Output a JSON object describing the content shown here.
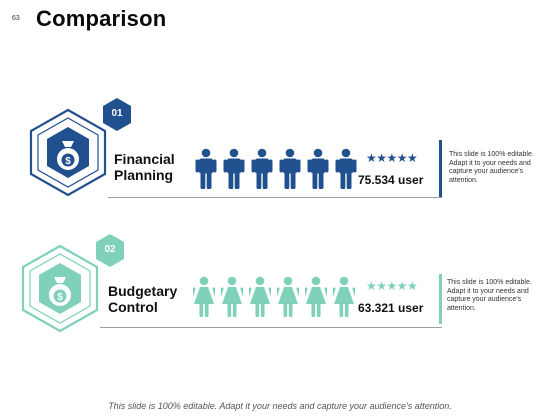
{
  "page_number": "63",
  "title": "Comparison",
  "colors": {
    "primary": "#21508f",
    "secondary": "#7fd1b9"
  },
  "items": [
    {
      "badge": "01",
      "icon": "money-bag-icon",
      "label_line1": "Financial",
      "label_line2": "Planning",
      "people_count": 6,
      "stars": "★★★★★",
      "value": "75.534 user",
      "description": "This slide is 100% editable. Adapt it to your needs and capture your audience's attention."
    },
    {
      "badge": "02",
      "icon": "money-bag-icon",
      "label_line1": "Budgetary",
      "label_line2": "Control",
      "people_count": 6,
      "stars": "★★★★★",
      "value": "63.321 user",
      "description": "This slide is 100% editable. Adapt it to your needs and capture your audience's attention."
    }
  ],
  "footer": "This slide is 100% editable. Adapt it your needs and capture your audience's attention."
}
